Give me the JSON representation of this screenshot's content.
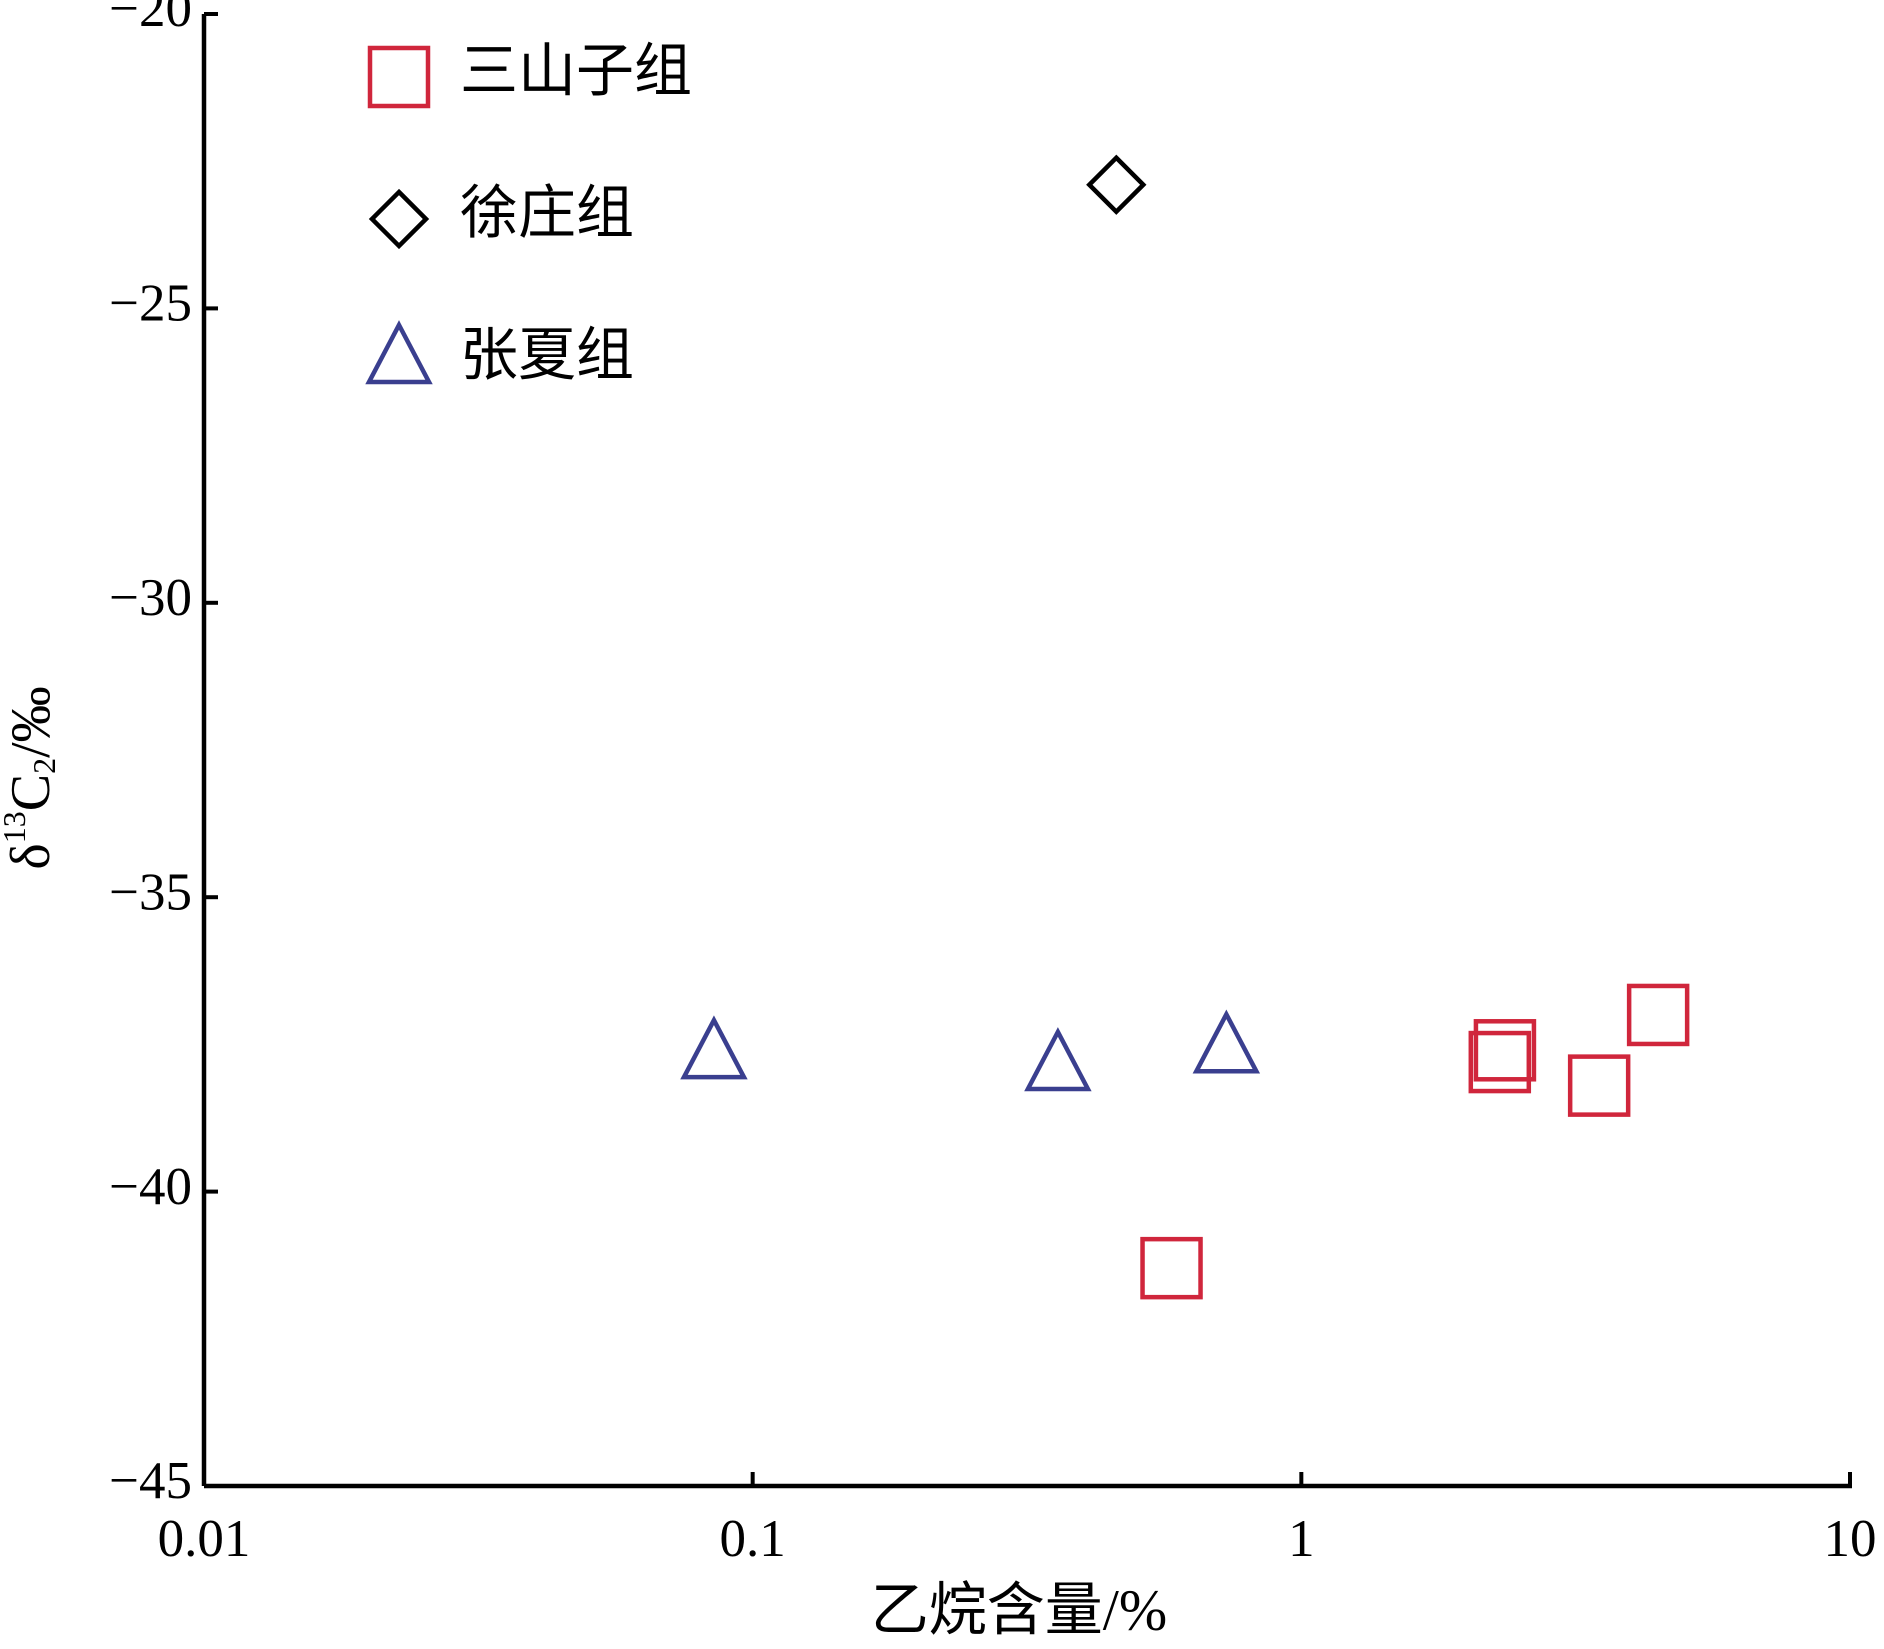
{
  "chart_data": {
    "type": "scatter",
    "x_label": "乙烷含量/%",
    "y_label": {
      "prefix": "δ",
      "sup": "13",
      "main": "C",
      "sub": "2",
      "suffix": "/‰"
    },
    "x_scale": "log",
    "xlim": [
      0.01,
      10
    ],
    "xticks": [
      0.01,
      0.1,
      1,
      10
    ],
    "ylim": [
      -45,
      -20
    ],
    "yticks": [
      {
        "value": -45,
        "label": "−45"
      },
      {
        "value": -40,
        "label": "−40"
      },
      {
        "value": -35,
        "label": "−35"
      },
      {
        "value": -30,
        "label": "−30"
      },
      {
        "value": -25,
        "label": "−25"
      },
      {
        "value": -20,
        "label": "−20"
      }
    ],
    "legend": "upper-left",
    "series": [
      {
        "name": "三山子组",
        "color": "#d0263c",
        "marker": "square",
        "x": [
          0.58,
          2.3,
          2.35,
          3.49,
          4.47
        ],
        "values": [
          -41.3,
          -37.8,
          -37.6,
          -38.2,
          -37.0
        ]
      },
      {
        "name": "徐庄组",
        "color": "#000000",
        "marker": "diamond",
        "x": [
          0.46
        ],
        "values": [
          -22.9
        ]
      },
      {
        "name": "张夏组",
        "color": "#3a3f8f",
        "marker": "triangle",
        "x": [
          0.085,
          0.36,
          0.73
        ],
        "values": [
          -37.7,
          -37.9,
          -37.6
        ]
      }
    ]
  }
}
